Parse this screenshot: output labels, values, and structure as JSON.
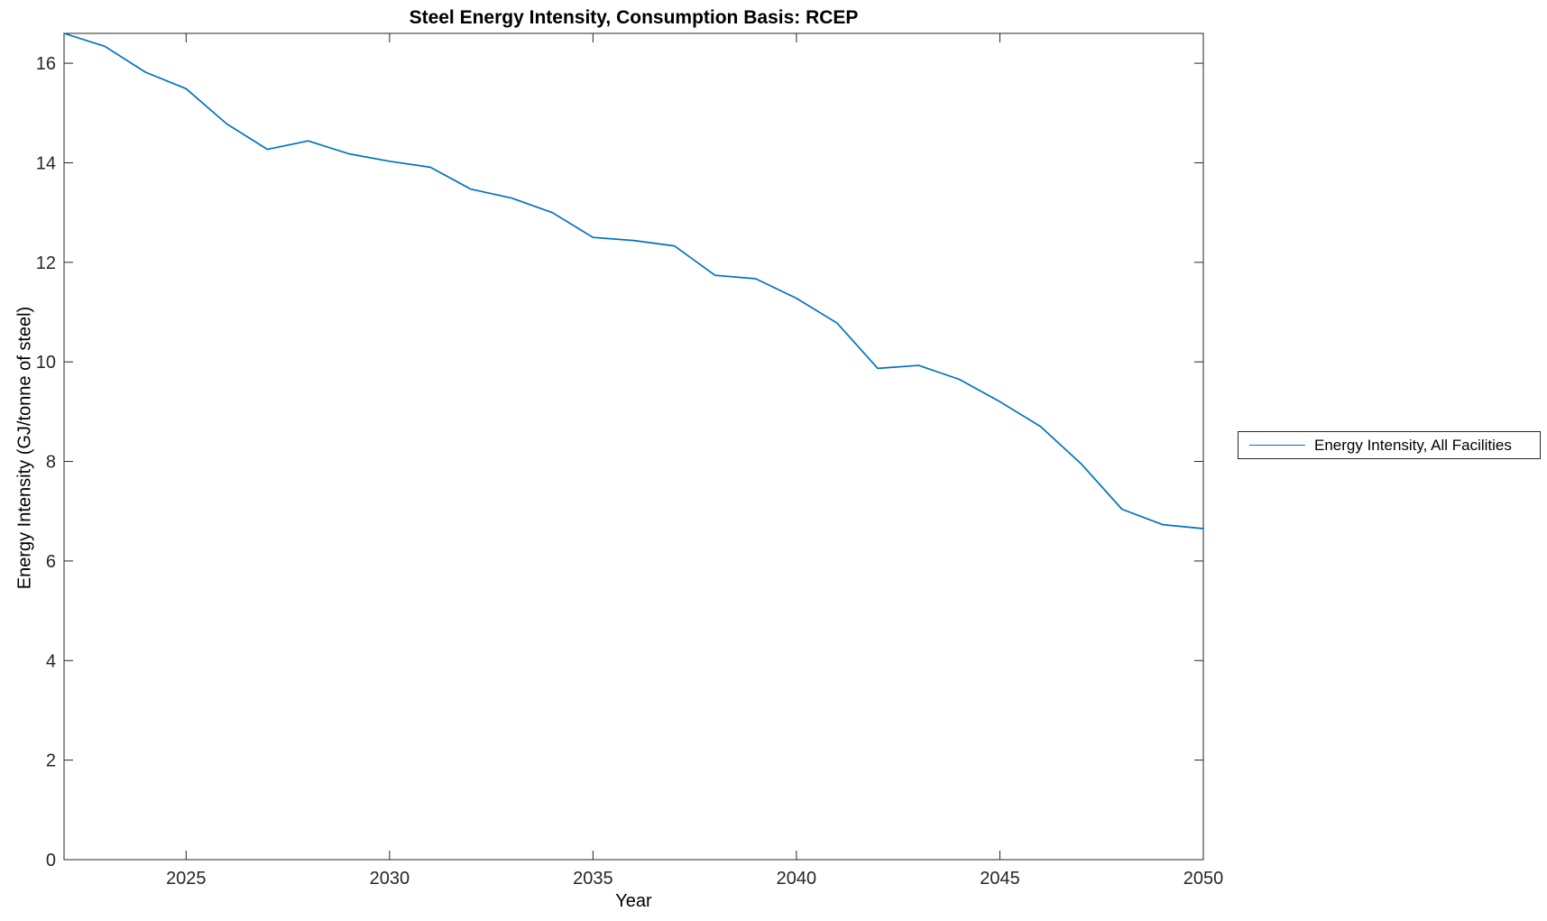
{
  "figure": {
    "title": "Steel Energy Intensity, Consumption Basis: RCEP",
    "xlabel": "Year",
    "ylabel": "Energy Intensity (GJ/tonne of steel)",
    "legend": {
      "position": "outside-right",
      "entries": [
        {
          "label": "Energy Intensity, All Facilities",
          "color": "#0072BD"
        }
      ]
    },
    "colors": {
      "line": "#0072BD",
      "axis": "#262626",
      "background": "#ffffff"
    }
  },
  "chart_data": {
    "type": "line",
    "title": "Steel Energy Intensity, Consumption Basis: RCEP",
    "xlabel": "Year",
    "ylabel": "Energy Intensity (GJ/tonne of steel)",
    "xlim": [
      2022,
      2050
    ],
    "ylim": [
      0,
      16.6
    ],
    "xticks": [
      2025,
      2030,
      2035,
      2040,
      2045,
      2050
    ],
    "yticks": [
      0,
      2,
      4,
      6,
      8,
      10,
      12,
      14,
      16
    ],
    "grid": false,
    "legend_position": "outside-right",
    "series": [
      {
        "name": "Energy Intensity, All Facilities",
        "color": "#0072BD",
        "x": [
          2022,
          2023,
          2024,
          2025,
          2026,
          2027,
          2028,
          2029,
          2030,
          2031,
          2032,
          2033,
          2034,
          2035,
          2036,
          2037,
          2038,
          2039,
          2040,
          2041,
          2042,
          2043,
          2044,
          2045,
          2046,
          2047,
          2048,
          2049,
          2050
        ],
        "values": [
          16.6,
          16.34,
          15.82,
          15.49,
          14.78,
          14.27,
          14.44,
          14.18,
          14.03,
          13.91,
          13.47,
          13.29,
          13.0,
          12.5,
          12.44,
          12.33,
          11.74,
          11.67,
          11.28,
          10.78,
          9.87,
          9.93,
          9.65,
          9.2,
          8.7,
          7.95,
          7.04,
          6.73,
          6.65
        ]
      }
    ]
  }
}
